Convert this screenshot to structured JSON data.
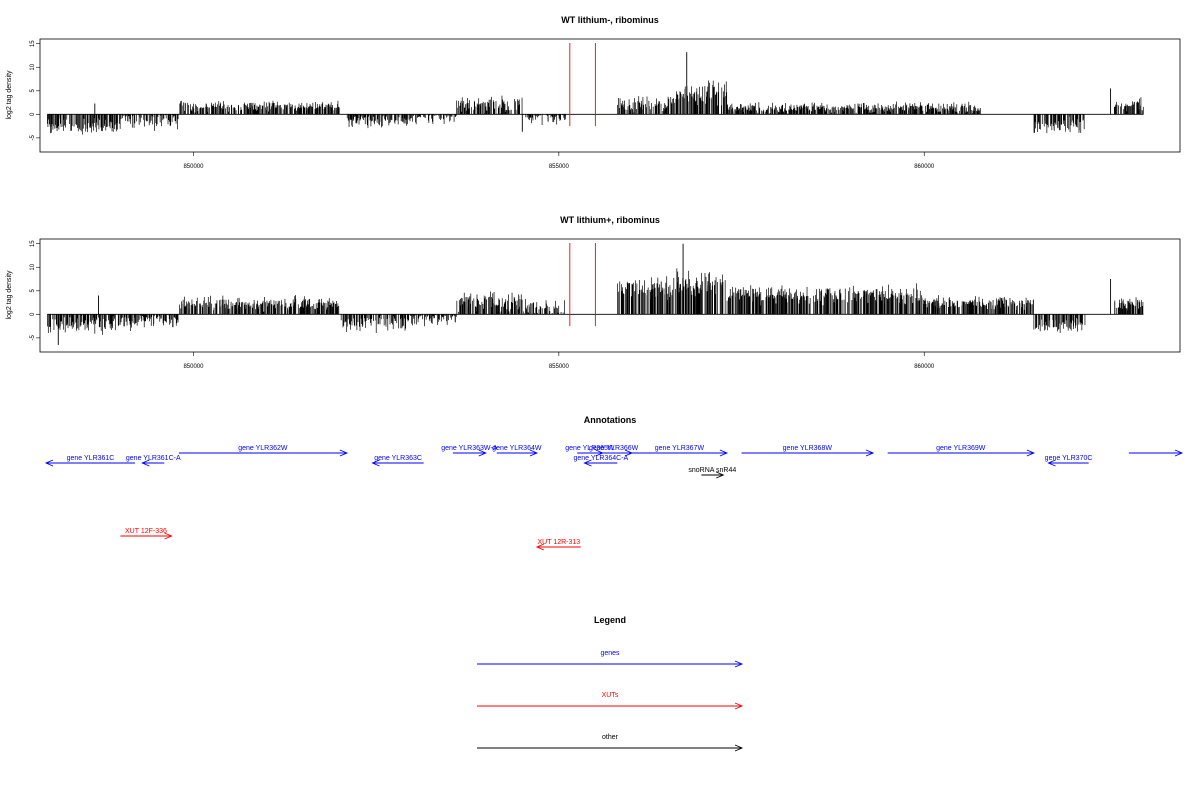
{
  "colors": {
    "genes": "#0000ff",
    "xuts": "#ff0000",
    "other": "#000000",
    "marker": "#ff0000",
    "signal": "#000000"
  },
  "chart_data": [
    {
      "type": "bar",
      "title": "WT lithium-, ribominus",
      "ylabel": "log2 tag density",
      "xlim": [
        847900,
        863500
      ],
      "ylim": [
        -8,
        16
      ],
      "x_ticks": [
        850000,
        855000,
        860000
      ],
      "x_tick_labels": [
        "850000",
        "855000",
        "860000"
      ],
      "y_ticks": [
        -5,
        0,
        5,
        10,
        15
      ],
      "y_tick_labels": [
        "-5",
        "0",
        "5",
        "10",
        "15"
      ],
      "markers": [
        855150,
        855500
      ],
      "segments": [
        {
          "start": 848000,
          "end": 849000,
          "mean": -2.5,
          "amp": 1.6
        },
        {
          "start": 849000,
          "end": 849800,
          "mean": -1.2,
          "amp": 1.8
        },
        {
          "start": 849800,
          "end": 852000,
          "mean": 1.8,
          "amp": 1.0
        },
        {
          "start": 852100,
          "end": 853000,
          "mean": -1.5,
          "amp": 1.2
        },
        {
          "start": 853000,
          "end": 853600,
          "mean": -0.3,
          "amp": 1.6
        },
        {
          "start": 853600,
          "end": 854500,
          "mean": 2.0,
          "amp": 1.6
        },
        {
          "start": 854500,
          "end": 855100,
          "mean": -0.4,
          "amp": 1.8
        },
        {
          "start": 855800,
          "end": 856600,
          "mean": 2.3,
          "amp": 1.5
        },
        {
          "start": 856600,
          "end": 857300,
          "mean": 4.2,
          "amp": 2.5
        },
        {
          "start": 857300,
          "end": 860800,
          "mean": 1.4,
          "amp": 1.0
        },
        {
          "start": 861500,
          "end": 862200,
          "mean": -2.4,
          "amp": 1.5
        },
        {
          "start": 862600,
          "end": 863000,
          "mean": 2.0,
          "amp": 1.2
        }
      ],
      "peaks": [
        {
          "x": 848650,
          "y": 2.3
        },
        {
          "x": 854500,
          "y": -3.7
        },
        {
          "x": 856750,
          "y": 13.2
        },
        {
          "x": 862550,
          "y": 5.5
        }
      ],
      "seed": 7
    },
    {
      "type": "bar",
      "title": "WT lithium+, ribominus",
      "ylabel": "log2 tag density",
      "xlim": [
        847900,
        863500
      ],
      "ylim": [
        -8,
        16
      ],
      "x_ticks": [
        850000,
        855000,
        860000
      ],
      "x_tick_labels": [
        "850000",
        "855000",
        "860000"
      ],
      "y_ticks": [
        -5,
        0,
        5,
        10,
        15
      ],
      "y_tick_labels": [
        "-5",
        "0",
        "5",
        "10",
        "15"
      ],
      "markers": [
        855150,
        855500
      ],
      "segments": [
        {
          "start": 848000,
          "end": 849000,
          "mean": -2.3,
          "amp": 1.8
        },
        {
          "start": 849000,
          "end": 849800,
          "mean": -1.4,
          "amp": 1.8
        },
        {
          "start": 849800,
          "end": 852000,
          "mean": 2.3,
          "amp": 1.3
        },
        {
          "start": 852000,
          "end": 853000,
          "mean": -1.7,
          "amp": 1.8
        },
        {
          "start": 853000,
          "end": 853600,
          "mean": -0.5,
          "amp": 1.5
        },
        {
          "start": 853600,
          "end": 854500,
          "mean": 2.7,
          "amp": 1.8
        },
        {
          "start": 854500,
          "end": 855100,
          "mean": 1.0,
          "amp": 2.0
        },
        {
          "start": 855800,
          "end": 856600,
          "mean": 5.8,
          "amp": 2.2
        },
        {
          "start": 856600,
          "end": 857300,
          "mean": 6.8,
          "amp": 2.6
        },
        {
          "start": 857300,
          "end": 860000,
          "mean": 4.2,
          "amp": 1.8
        },
        {
          "start": 860000,
          "end": 861500,
          "mean": 2.5,
          "amp": 1.2
        },
        {
          "start": 861500,
          "end": 862200,
          "mean": -2.5,
          "amp": 1.4
        },
        {
          "start": 862600,
          "end": 863000,
          "mean": 2.3,
          "amp": 1.3
        }
      ],
      "peaks": [
        {
          "x": 848700,
          "y": 4.0
        },
        {
          "x": 856700,
          "y": 15.0
        },
        {
          "x": 862550,
          "y": 7.5
        },
        {
          "x": 848150,
          "y": -6.5
        }
      ],
      "seed": 11
    }
  ],
  "annotations": {
    "title": "Annotations",
    "xlim": [
      847900,
      863500
    ],
    "features": [
      {
        "label": "gene YLR361C",
        "start": 847450,
        "end": 849200,
        "strand": "-",
        "row": 1,
        "kind": "gene"
      },
      {
        "label": "gene YLR361C-A",
        "start": 849300,
        "end": 849600,
        "strand": "-",
        "row": 1,
        "kind": "gene"
      },
      {
        "label": "gene YLR362W",
        "start": 849800,
        "end": 852100,
        "strand": "+",
        "row": 0,
        "kind": "gene"
      },
      {
        "label": "gene YLR363C",
        "start": 852450,
        "end": 853150,
        "strand": "-",
        "row": 1,
        "kind": "gene"
      },
      {
        "label": "gene YLR363W-A",
        "start": 853550,
        "end": 854000,
        "strand": "+",
        "row": 0,
        "kind": "gene"
      },
      {
        "label": "gene YLR364W",
        "start": 854150,
        "end": 854700,
        "strand": "+",
        "row": 0,
        "kind": "gene"
      },
      {
        "label": "gene YLR365W",
        "start": 855250,
        "end": 855600,
        "strand": "+",
        "row": 0,
        "kind": "gene"
      },
      {
        "label": "gene YLR366W",
        "start": 855500,
        "end": 856000,
        "strand": "+",
        "row": 0,
        "kind": "gene"
      },
      {
        "label": "gene YLR364C-A",
        "start": 855350,
        "end": 855800,
        "strand": "-",
        "row": 1,
        "kind": "gene"
      },
      {
        "label": "gene YLR367W",
        "start": 856000,
        "end": 857300,
        "strand": "+",
        "row": 0,
        "kind": "gene"
      },
      {
        "label": "snoRNA snR44",
        "start": 856950,
        "end": 857250,
        "strand": "+",
        "row": 2,
        "kind": "other"
      },
      {
        "label": "gene YLR368W",
        "start": 857500,
        "end": 859300,
        "strand": "+",
        "row": 0,
        "kind": "gene"
      },
      {
        "label": "gene YLR369W",
        "start": 859500,
        "end": 861500,
        "strand": "+",
        "row": 0,
        "kind": "gene"
      },
      {
        "label": "gene YLR370C",
        "start": 861700,
        "end": 862250,
        "strand": "-",
        "row": 1,
        "kind": "gene"
      },
      {
        "label": "",
        "start": 862800,
        "end": 863600,
        "strand": "+",
        "row": 0,
        "kind": "gene"
      },
      {
        "label": "XUT 12F-336",
        "start": 849000,
        "end": 849700,
        "strand": "+",
        "row": 4,
        "kind": "xut"
      },
      {
        "label": "XUT 12R-313",
        "start": 854700,
        "end": 855300,
        "strand": "-",
        "row": 5,
        "kind": "xut"
      }
    ]
  },
  "legend": {
    "title": "Legend",
    "items": [
      {
        "label": "genes",
        "color": "#0000ff"
      },
      {
        "label": "XUTs",
        "color": "#ff0000"
      },
      {
        "label": "other",
        "color": "#000000"
      }
    ]
  }
}
